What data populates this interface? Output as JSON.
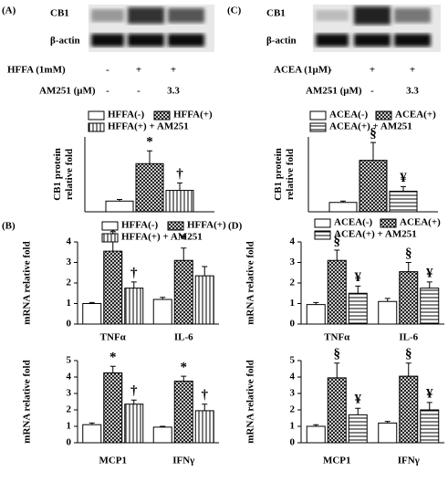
{
  "blots": [
    {
      "panel": "(A)",
      "rows": [
        "CB1",
        "β-actin"
      ],
      "conditions": [
        {
          "name": "HFFA (1mM)",
          "values": [
            "-",
            "+",
            "+"
          ]
        },
        {
          "name": "AM251 (μM)",
          "values": [
            "-",
            "-",
            "3.3"
          ]
        }
      ]
    },
    {
      "panel": "(C)",
      "rows": [
        "CB1",
        "β-actin"
      ],
      "conditions": [
        {
          "name": "ACEA (1μM)",
          "values": [
            "-",
            "+",
            "+"
          ]
        },
        {
          "name": "AM251 (μM)",
          "values": [
            "-",
            "-",
            "3.3"
          ]
        }
      ]
    }
  ],
  "chart_data": [
    {
      "type": "bar",
      "ylabel": [
        "CB1 protein",
        "relative fold"
      ],
      "categories": [
        null
      ],
      "ylim": [
        0,
        7
      ],
      "series": [
        {
          "name": "HFFA(-)",
          "color": "#ffffff",
          "pattern": "none",
          "values": [
            1.0
          ],
          "errors": [
            0.15
          ],
          "markers": [
            null
          ]
        },
        {
          "name": "HFFA(+)",
          "color": "#ffffff",
          "pattern": "crosshatch",
          "values": [
            4.5
          ],
          "errors": [
            1.2
          ],
          "markers": [
            "*"
          ]
        },
        {
          "name": "HFFA(+) + AM251",
          "color": "#ffffff",
          "pattern": "vertical",
          "values": [
            2.0
          ],
          "errors": [
            0.7
          ],
          "markers": [
            "†"
          ]
        }
      ]
    },
    {
      "type": "bar",
      "panel": "(B)",
      "ylabel": [
        "mRNA  relative fold"
      ],
      "categories": [
        "TNFα",
        "IL-6"
      ],
      "ylim": [
        0,
        4
      ],
      "yticks": [
        0,
        1,
        2,
        3,
        4
      ],
      "series": [
        {
          "name": "HFFA(-)",
          "color": "#ffffff",
          "pattern": "none",
          "values": [
            1.0,
            1.2
          ],
          "errors": [
            0.05,
            0.1
          ],
          "markers": [
            null,
            null
          ]
        },
        {
          "name": "HFFA(+)",
          "color": "#ffffff",
          "pattern": "crosshatch",
          "values": [
            3.55,
            3.1
          ],
          "errors": [
            0.45,
            0.6
          ],
          "markers": [
            "*",
            "*"
          ]
        },
        {
          "name": "HFFA(+) + AM251",
          "color": "#ffffff",
          "pattern": "vertical",
          "values": [
            1.75,
            2.35
          ],
          "errors": [
            0.3,
            0.45
          ],
          "markers": [
            "†",
            null
          ]
        }
      ]
    },
    {
      "type": "bar",
      "ylabel": [
        "mRNA  relative fold"
      ],
      "categories": [
        "MCP1",
        "IFNγ"
      ],
      "ylim": [
        0,
        5
      ],
      "yticks": [
        0,
        1,
        2,
        3,
        4,
        5
      ],
      "series": [
        {
          "color": "#ffffff",
          "pattern": "none",
          "values": [
            1.1,
            0.95
          ],
          "errors": [
            0.1,
            0.05
          ],
          "markers": [
            null,
            null
          ]
        },
        {
          "color": "#ffffff",
          "pattern": "crosshatch",
          "values": [
            4.25,
            3.75
          ],
          "errors": [
            0.4,
            0.3
          ],
          "markers": [
            "*",
            "*"
          ]
        },
        {
          "color": "#ffffff",
          "pattern": "vertical",
          "values": [
            2.35,
            1.95
          ],
          "errors": [
            0.25,
            0.4
          ],
          "markers": [
            "†",
            "†"
          ]
        }
      ]
    },
    {
      "type": "bar",
      "ylabel": [
        "CB1 protein",
        "relative fold"
      ],
      "categories": [
        null
      ],
      "ylim": [
        0,
        8
      ],
      "series": [
        {
          "name": "ACEA(-)",
          "color": "#ffffff",
          "pattern": "none",
          "values": [
            1.0
          ],
          "errors": [
            0.15
          ],
          "markers": [
            null
          ]
        },
        {
          "name": "ACEA(+)",
          "color": "#ffffff",
          "pattern": "crosshatch",
          "values": [
            5.5
          ],
          "errors": [
            1.9
          ],
          "markers": [
            "§"
          ]
        },
        {
          "name": "ACEA(+) + AM251",
          "color": "#ffffff",
          "pattern": "horizontal",
          "values": [
            2.2
          ],
          "errors": [
            0.5
          ],
          "markers": [
            "¥"
          ]
        }
      ]
    },
    {
      "type": "bar",
      "panel": "(D)",
      "ylabel": [
        "mRNA  relative fold"
      ],
      "categories": [
        "TNFα",
        "IL-6"
      ],
      "ylim": [
        0,
        4
      ],
      "yticks": [
        0,
        1,
        2,
        3,
        4
      ],
      "series": [
        {
          "name": "ACEA(-)",
          "color": "#ffffff",
          "pattern": "none",
          "values": [
            0.95,
            1.1
          ],
          "errors": [
            0.1,
            0.15
          ],
          "markers": [
            null,
            null
          ]
        },
        {
          "name": "ACEA(+)",
          "color": "#ffffff",
          "pattern": "crosshatch",
          "values": [
            3.1,
            2.55
          ],
          "errors": [
            0.5,
            0.45
          ],
          "markers": [
            "§",
            "§"
          ]
        },
        {
          "name": "ACEA(+) + AM251",
          "color": "#ffffff",
          "pattern": "horizontal",
          "values": [
            1.5,
            1.75
          ],
          "errors": [
            0.35,
            0.3
          ],
          "markers": [
            "¥",
            "¥"
          ]
        }
      ]
    },
    {
      "type": "bar",
      "ylabel": [
        "mRNA  relative fold"
      ],
      "categories": [
        "MCP1",
        "IFNγ"
      ],
      "ylim": [
        0,
        5
      ],
      "yticks": [
        0,
        1,
        2,
        3,
        4,
        5
      ],
      "series": [
        {
          "color": "#ffffff",
          "pattern": "none",
          "values": [
            1.0,
            1.2
          ],
          "errors": [
            0.1,
            0.1
          ],
          "markers": [
            null,
            null
          ]
        },
        {
          "color": "#ffffff",
          "pattern": "crosshatch",
          "values": [
            3.95,
            4.05
          ],
          "errors": [
            0.9,
            0.8
          ],
          "markers": [
            "§",
            "§"
          ]
        },
        {
          "color": "#ffffff",
          "pattern": "horizontal",
          "values": [
            1.7,
            2.0
          ],
          "errors": [
            0.4,
            0.45
          ],
          "markers": [
            "¥",
            "¥"
          ]
        }
      ]
    }
  ]
}
